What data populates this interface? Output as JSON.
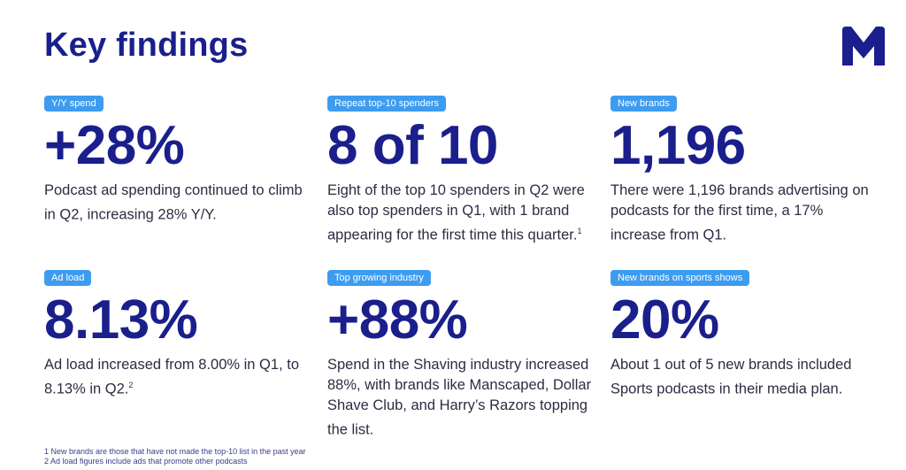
{
  "page": {
    "title": "Key findings"
  },
  "logo": {
    "icon": "m-logo-icon",
    "color": "#1a1f8c"
  },
  "colors": {
    "accent": "#1a1f8c",
    "badge": "#3d9cf0"
  },
  "findings": [
    {
      "badge": "Y/Y spend",
      "stat": "+28%",
      "desc": "Podcast ad spending continued to climb in Q2, increasing 28% Y/Y.",
      "sup": ""
    },
    {
      "badge": "Repeat top-10 spenders",
      "stat": "8 of 10",
      "desc": "Eight of the top 10 spenders in Q2 were also top spenders in Q1, with 1 brand appearing for the first time this quarter.",
      "sup": "1"
    },
    {
      "badge": "New brands",
      "stat": "1,196",
      "desc": "There were 1,196 brands advertising on podcasts for the first time, a 17% increase from Q1.",
      "sup": ""
    },
    {
      "badge": "Ad load",
      "stat": "8.13%",
      "desc": "Ad load increased from 8.00% in Q1, to 8.13% in Q2.",
      "sup": "2"
    },
    {
      "badge": "Top growing industry",
      "stat": "+88%",
      "desc": "Spend in the Shaving industry increased 88%, with brands like Manscaped, Dollar Shave Club, and Harry’s Razors topping the list.",
      "sup": ""
    },
    {
      "badge": "New brands on sports shows",
      "stat": "20%",
      "desc": "About 1 out of 5 new brands included Sports podcasts in their media plan.",
      "sup": ""
    }
  ],
  "footnotes": [
    "1 New brands are those that have not made the top-10 list in the past year",
    "2 Ad load figures include ads that promote other podcasts"
  ]
}
